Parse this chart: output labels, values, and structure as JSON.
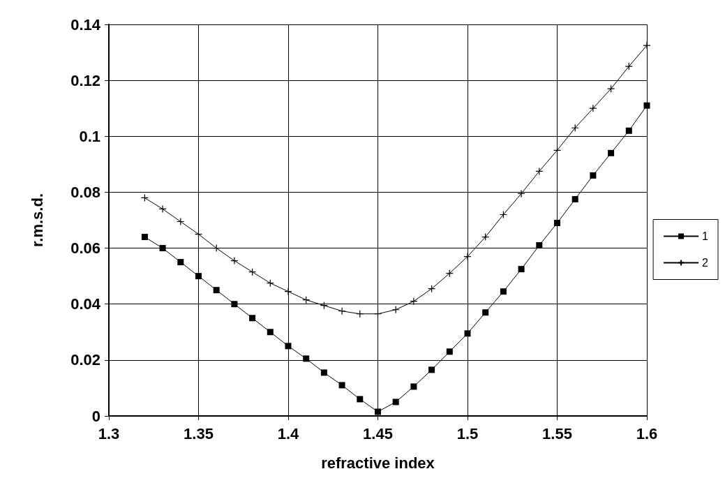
{
  "chart_data": {
    "type": "line",
    "xlabel": "refractive index",
    "ylabel": "r.m.s.d.",
    "x": [
      1.32,
      1.33,
      1.34,
      1.35,
      1.36,
      1.37,
      1.38,
      1.39,
      1.4,
      1.41,
      1.42,
      1.43,
      1.44,
      1.45,
      1.46,
      1.47,
      1.48,
      1.49,
      1.5,
      1.51,
      1.52,
      1.53,
      1.54,
      1.55,
      1.56,
      1.57,
      1.58,
      1.59,
      1.6
    ],
    "series": [
      {
        "name": "1",
        "color": "#000000",
        "marker": "square",
        "values": [
          0.064,
          0.06,
          0.055,
          0.05,
          0.045,
          0.04,
          0.035,
          0.03,
          0.025,
          0.0205,
          0.0155,
          0.011,
          0.006,
          0.0015,
          0.005,
          0.0105,
          0.0165,
          0.023,
          0.0295,
          0.037,
          0.0445,
          0.0525,
          0.061,
          0.069,
          0.0775,
          0.086,
          0.094,
          0.102,
          0.111
        ]
      },
      {
        "name": "2",
        "color": "#000000",
        "marker": "cross",
        "values": [
          0.078,
          0.074,
          0.0695,
          0.065,
          0.06,
          0.0555,
          0.0515,
          0.0475,
          0.0445,
          0.0415,
          0.0395,
          0.0375,
          0.0365,
          0.0365,
          0.038,
          0.041,
          0.0455,
          0.051,
          0.057,
          0.064,
          0.072,
          0.0795,
          0.0875,
          0.095,
          0.103,
          0.11,
          0.117,
          0.125,
          0.1325
        ]
      }
    ],
    "xlim": [
      1.3,
      1.6
    ],
    "xticks": [
      1.3,
      1.35,
      1.4,
      1.45,
      1.5,
      1.55,
      1.6
    ],
    "ylim": [
      0,
      0.14
    ],
    "yticks": [
      0,
      0.02,
      0.04,
      0.06,
      0.08,
      0.1,
      0.12,
      0.14
    ],
    "grid": true,
    "legend": "right",
    "line_style": "solid"
  }
}
